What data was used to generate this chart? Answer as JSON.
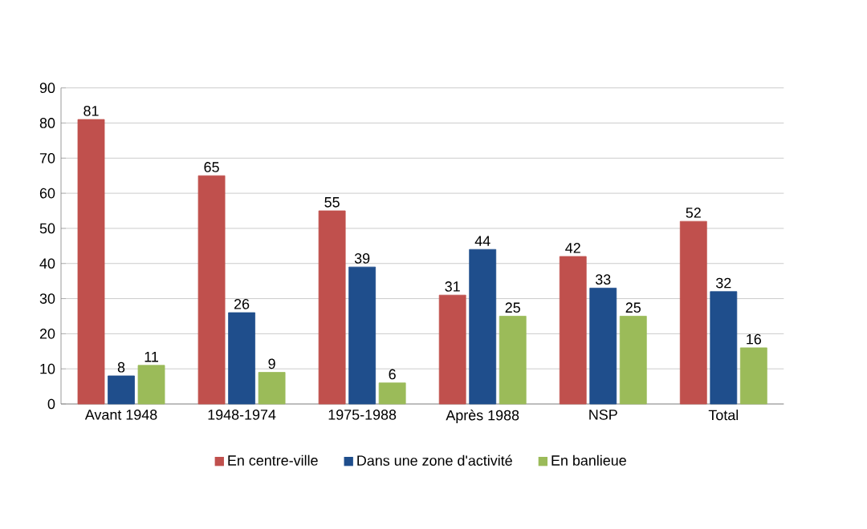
{
  "chart_data": {
    "type": "bar",
    "categories": [
      "Avant 1948",
      "1948-1974",
      "1975-1988",
      "Après 1988",
      "NSP",
      "Total"
    ],
    "series": [
      {
        "name": "En centre-ville",
        "color": "#c0504d",
        "values": [
          81,
          65,
          55,
          31,
          42,
          52
        ]
      },
      {
        "name": "Dans une zone d'activité",
        "color": "#1f4e8c",
        "values": [
          8,
          26,
          39,
          44,
          33,
          32
        ]
      },
      {
        "name": "En banlieue",
        "color": "#9bbb59",
        "values": [
          11,
          9,
          6,
          25,
          25,
          16
        ]
      }
    ],
    "ylim": [
      0,
      90
    ],
    "yticks": [
      0,
      10,
      20,
      30,
      40,
      50,
      60,
      70,
      80,
      90
    ],
    "grid": "y",
    "legend": "bottom",
    "data_labels": true
  }
}
